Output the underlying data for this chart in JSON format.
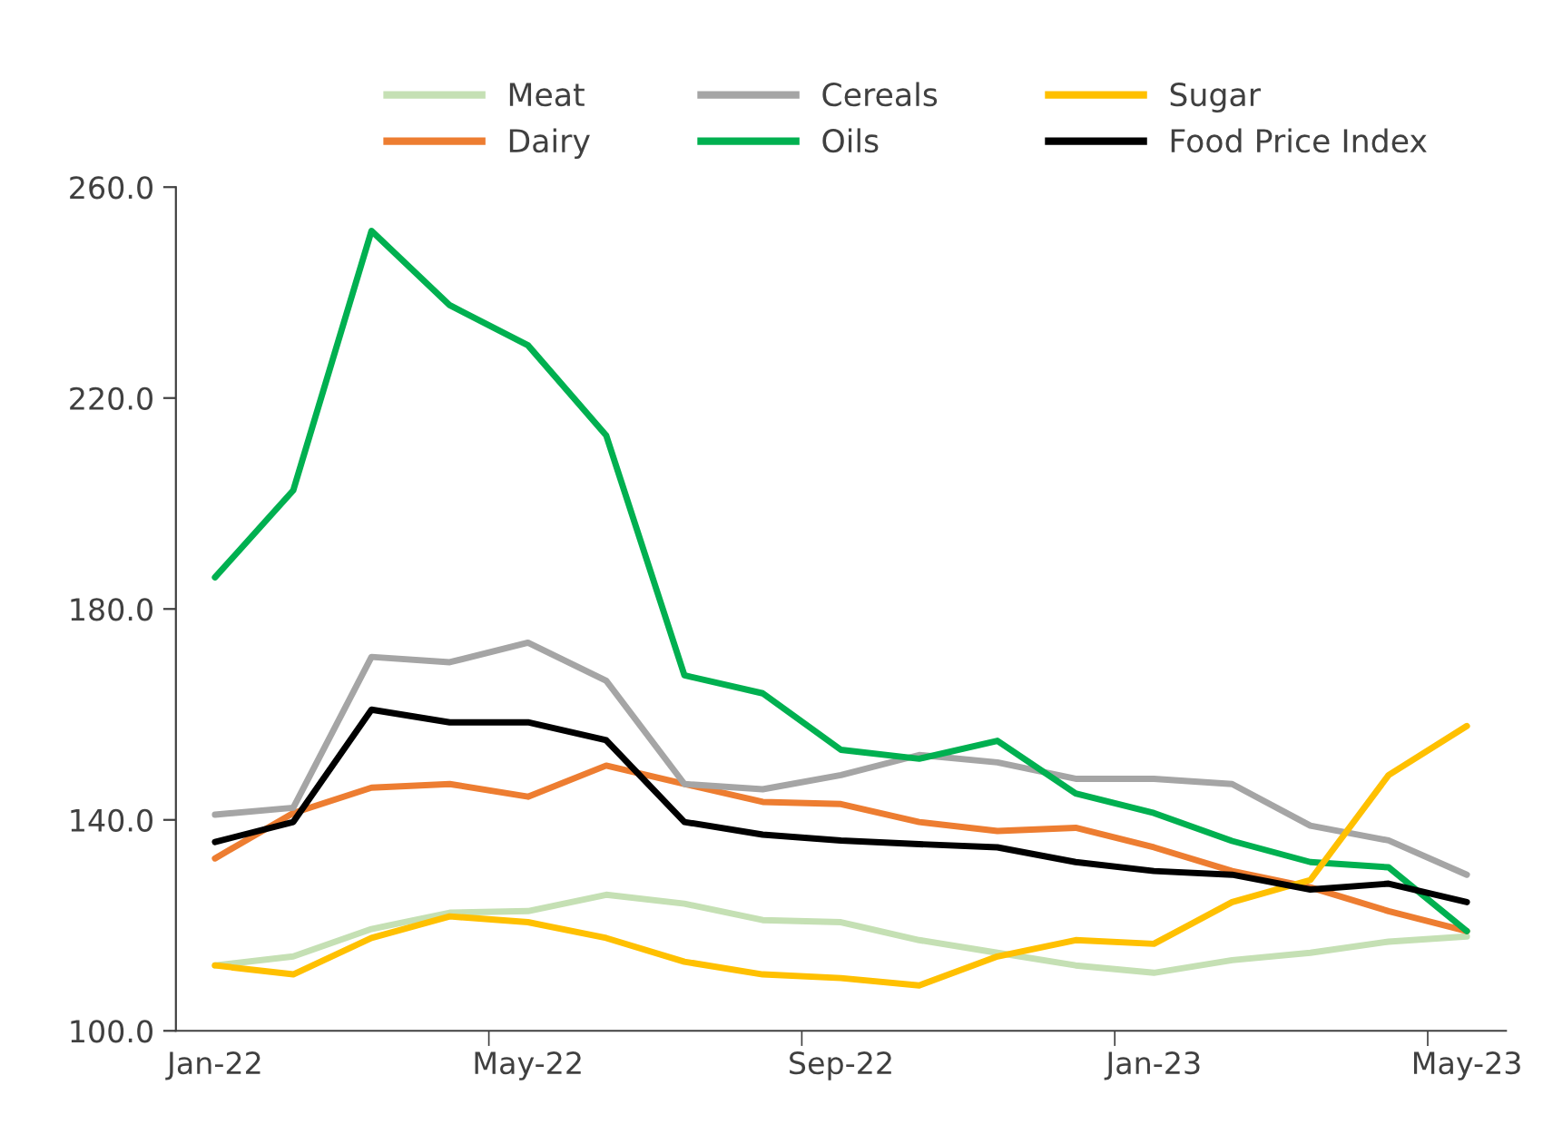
{
  "chart_data": {
    "type": "line",
    "categories": [
      "Jan-22",
      null,
      null,
      null,
      "May-22",
      null,
      null,
      null,
      "Sep-22",
      null,
      null,
      null,
      "Jan-23",
      null,
      null,
      null,
      "May-23"
    ],
    "series": [
      {
        "name": "Meat",
        "color": "#c5e0b4",
        "values": [
          112.4,
          114.1,
          119.3,
          122.4,
          122.7,
          125.8,
          124.1,
          121.0,
          120.6,
          117.2,
          114.8,
          112.4,
          111.0,
          113.4,
          114.8,
          116.9,
          117.9
        ]
      },
      {
        "name": "Dairy",
        "color": "#ed7d31",
        "values": [
          132.7,
          141.3,
          146.1,
          146.8,
          144.4,
          150.3,
          146.8,
          143.4,
          143.0,
          139.6,
          137.9,
          138.5,
          134.8,
          130.3,
          127.2,
          122.7,
          118.9
        ]
      },
      {
        "name": "Cereals",
        "color": "#a5a5a5",
        "values": [
          141.0,
          142.3,
          170.9,
          169.9,
          173.6,
          166.4,
          146.8,
          145.8,
          148.5,
          152.3,
          150.9,
          147.8,
          147.8,
          146.8,
          138.9,
          136.1,
          129.6
        ]
      },
      {
        "name": "Oils",
        "color": "#00b050",
        "values": [
          186.0,
          202.5,
          251.7,
          237.6,
          230.0,
          212.9,
          167.4,
          164.0,
          153.3,
          151.6,
          155.0,
          145.0,
          141.3,
          136.0,
          132.0,
          131.0,
          118.9
        ]
      },
      {
        "name": "Sugar",
        "color": "#ffc000",
        "values": [
          112.4,
          110.7,
          117.6,
          121.7,
          120.6,
          117.6,
          113.1,
          110.7,
          110.0,
          108.6,
          114.1,
          117.2,
          116.5,
          124.4,
          128.6,
          148.5,
          157.8
        ]
      },
      {
        "name": "Food Price Index",
        "color": "#000000",
        "values": [
          135.8,
          139.6,
          160.9,
          158.5,
          158.5,
          155.1,
          139.6,
          137.2,
          136.1,
          135.4,
          134.8,
          132.0,
          130.3,
          129.6,
          126.8,
          127.9,
          124.4
        ]
      }
    ],
    "ylim": [
      100,
      260
    ],
    "yticks": [
      {
        "value": 100,
        "label": "100.0"
      },
      {
        "value": 140,
        "label": "140.0"
      },
      {
        "value": 180,
        "label": "180.0"
      },
      {
        "value": 220,
        "label": "220.0"
      },
      {
        "value": 260,
        "label": "260.0"
      }
    ],
    "grid": false,
    "legend": "top",
    "marker": "none",
    "line_style": "solid"
  }
}
